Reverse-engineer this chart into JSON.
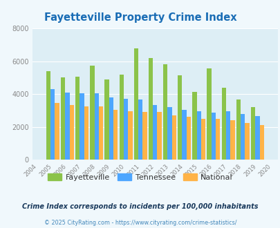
{
  "title": "Fayetteville Property Crime Index",
  "years": [
    2004,
    2005,
    2006,
    2007,
    2008,
    2009,
    2010,
    2011,
    2012,
    2013,
    2014,
    2015,
    2016,
    2017,
    2018,
    2019,
    2020
  ],
  "fayetteville": [
    null,
    5400,
    5000,
    5050,
    5750,
    4900,
    5200,
    6800,
    6200,
    5800,
    5150,
    4150,
    5550,
    4400,
    3650,
    3200,
    null
  ],
  "tennessee": [
    null,
    4300,
    4100,
    4050,
    4050,
    3800,
    3700,
    3650,
    3350,
    3200,
    3050,
    2950,
    2850,
    2950,
    2800,
    2650,
    null
  ],
  "national": [
    null,
    3450,
    3350,
    3250,
    3250,
    3050,
    2950,
    2900,
    2900,
    2700,
    2600,
    2500,
    2500,
    2400,
    2250,
    2100,
    null
  ],
  "fayetteville_color": "#8bc34a",
  "tennessee_color": "#4da6ff",
  "national_color": "#ffb347",
  "background_color": "#f0f8fc",
  "plot_bg_color": "#ddeef5",
  "ylim": [
    0,
    8000
  ],
  "yticks": [
    0,
    2000,
    4000,
    6000,
    8000
  ],
  "subtitle": "Crime Index corresponds to incidents per 100,000 inhabitants",
  "footer": "© 2025 CityRating.com - https://www.cityrating.com/crime-statistics/",
  "title_color": "#1a6db5",
  "subtitle_color": "#1a3a5c",
  "footer_color": "#4488bb"
}
